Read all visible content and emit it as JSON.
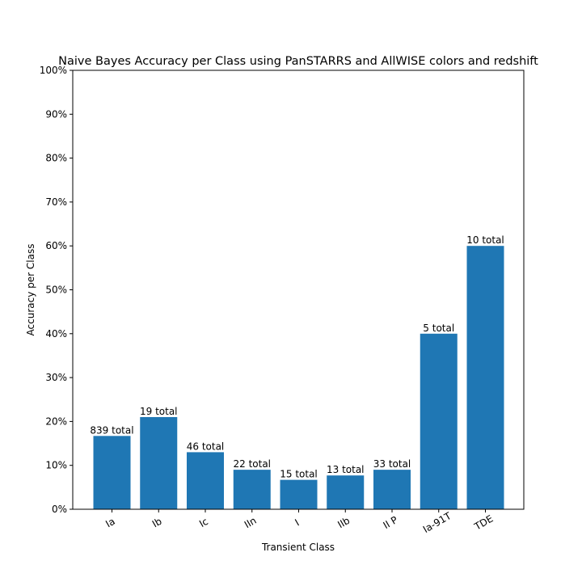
{
  "chart_data": {
    "type": "bar",
    "title": "Naive Bayes Accuracy per Class using PanSTARRS and AllWISE colors and redshift",
    "xlabel": "Transient Class",
    "ylabel": "Accuracy per Class",
    "categories": [
      "Ia",
      "Ib",
      "Ic",
      "IIn",
      "I",
      "IIb",
      "II P",
      "Ia-91T",
      "TDE"
    ],
    "values": [
      0.167,
      0.21,
      0.13,
      0.09,
      0.067,
      0.077,
      0.09,
      0.4,
      0.6
    ],
    "bar_labels": [
      "839 total",
      "19 total",
      "46 total",
      "22 total",
      "15 total",
      "13 total",
      "33 total",
      "5 total",
      "10 total"
    ],
    "yticks": [
      0,
      0.1,
      0.2,
      0.3,
      0.4,
      0.5,
      0.6,
      0.7,
      0.8,
      0.9,
      1.0
    ],
    "ytick_labels": [
      "0%",
      "10%",
      "20%",
      "30%",
      "40%",
      "50%",
      "60%",
      "70%",
      "80%",
      "90%",
      "100%"
    ],
    "ylim": [
      0,
      1.0
    ],
    "bar_color": "#1f77b4",
    "grid": false,
    "legend": "none"
  }
}
